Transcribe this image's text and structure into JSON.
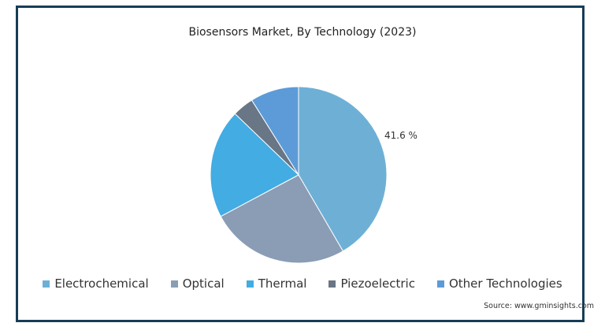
{
  "chart_data": {
    "type": "pie",
    "title": "Biosensors Market, By Technology (2023)",
    "categories": [
      "Electrochemical",
      "Optical",
      "Thermal",
      "Piezoelectric",
      "Other Technologies"
    ],
    "values": [
      41.6,
      25.6,
      20.0,
      3.9,
      8.9
    ],
    "colors": [
      "#6eb0d5",
      "#8a9db5",
      "#42ace3",
      "#687685",
      "#5c9bd8"
    ],
    "data_labels": [
      {
        "category": "Electrochemical",
        "text": "41.6 %"
      }
    ],
    "legend_position": "bottom"
  },
  "source": "Source: www.gminsights.com"
}
